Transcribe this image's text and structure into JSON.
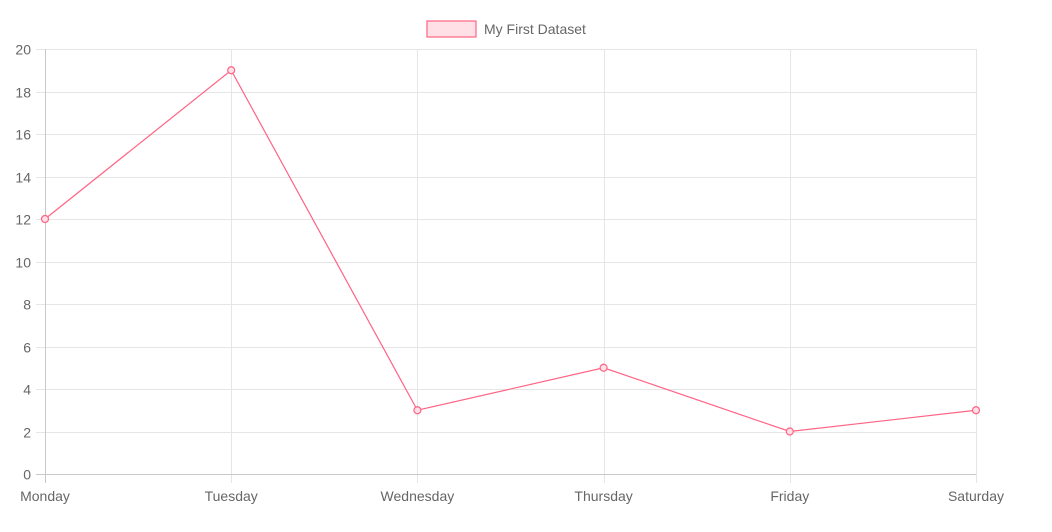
{
  "chart_data": {
    "type": "line",
    "categories": [
      "Monday",
      "Tuesday",
      "Wednesday",
      "Thursday",
      "Friday",
      "Saturday"
    ],
    "series": [
      {
        "name": "My First Dataset",
        "values": [
          12,
          19,
          3,
          5,
          2,
          3
        ],
        "color": "#ff6384",
        "fill_color": "#ffe0e6"
      }
    ],
    "y_ticks": [
      "0",
      "2",
      "4",
      "6",
      "8",
      "10",
      "12",
      "14",
      "16",
      "18",
      "20"
    ],
    "ylim": [
      0,
      20
    ],
    "grid": true,
    "legend_position": "top",
    "grid_color": "#e6e6e6",
    "text_color": "#666666"
  }
}
